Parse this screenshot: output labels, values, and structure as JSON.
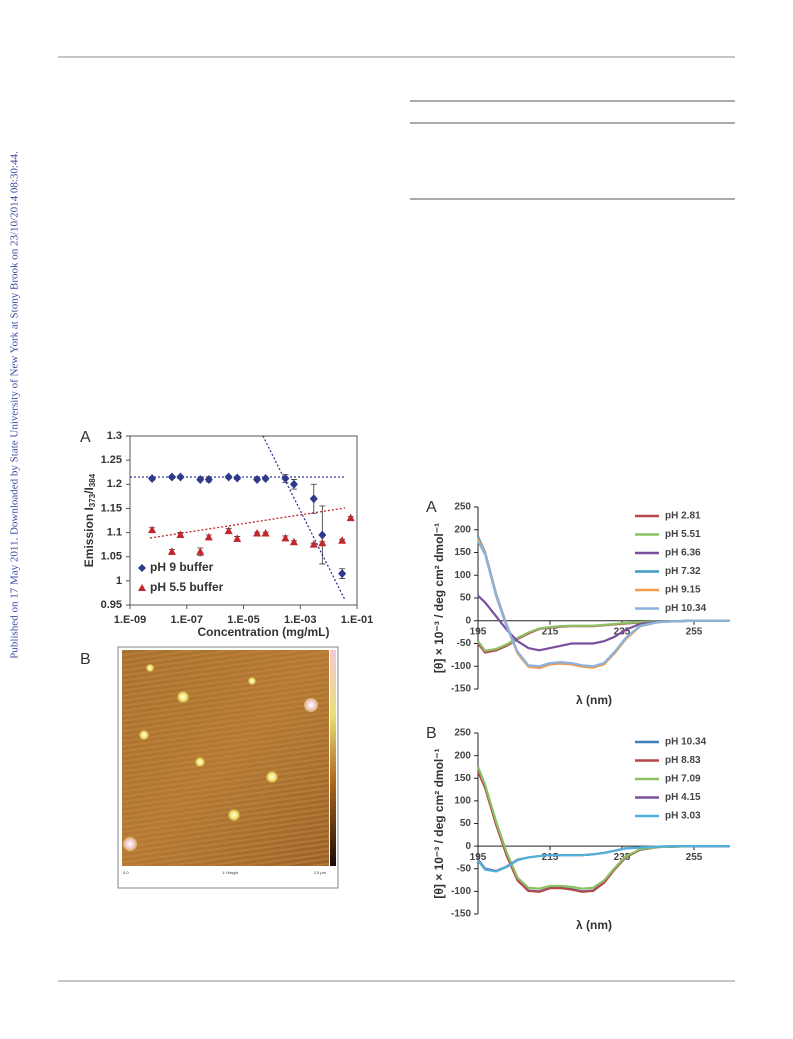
{
  "sidebar": "Published on 17 May 2011. Downloaded by State University of New York at Stony Brook on 23/10/2014 08:30:44.",
  "afm_image": {
    "panel": "B",
    "labels": [
      "0.0",
      "1: Height",
      "2.0 µm"
    ]
  },
  "chart_data": [
    {
      "type": "scatter",
      "panel": "A",
      "xlabel": "Concentration (mg/mL)",
      "ylabel": [
        "Emission I",
        "373",
        "/I",
        "384"
      ],
      "xlog": true,
      "xlim": [
        1e-09,
        0.1
      ],
      "xticks": [
        {
          "value": 1e-09,
          "label": "1.E-09"
        },
        {
          "value": 1e-07,
          "label": "1.E-07"
        },
        {
          "value": 1e-05,
          "label": "1.E-05"
        },
        {
          "value": 0.001,
          "label": "1.E-03"
        },
        {
          "value": 0.1,
          "label": "1.E-01"
        }
      ],
      "ylim": [
        0.95,
        1.3
      ],
      "yticks": [
        0.95,
        1,
        1.05,
        1.1,
        1.15,
        1.2,
        1.25,
        1.3
      ],
      "legend": "bottom-left",
      "series": [
        {
          "name": "pH 9 buffer",
          "color": "#2f3a8f",
          "marker": "diamond",
          "x": [
            6e-09,
            3e-08,
            6e-08,
            3e-07,
            6e-07,
            3e-06,
            6e-06,
            3e-05,
            6e-05,
            0.0003,
            0.0006,
            0.003,
            0.006,
            0.03
          ],
          "values": [
            1.212,
            1.215,
            1.215,
            1.21,
            1.21,
            1.215,
            1.213,
            1.21,
            1.212,
            1.212,
            1.2,
            1.17,
            1.095,
            1.015
          ],
          "errors": [
            0.003,
            0.003,
            0.003,
            0.003,
            0.005,
            0.003,
            0.003,
            0.003,
            0.003,
            0.008,
            0.01,
            0.03,
            0.06,
            0.01
          ]
        },
        {
          "name": "pH 5.5 buffer",
          "color": "#c0282d",
          "marker": "triangle",
          "x": [
            6e-09,
            3e-08,
            6e-08,
            3e-07,
            6e-07,
            3e-06,
            6e-06,
            3e-05,
            6e-05,
            0.0003,
            0.0006,
            0.003,
            0.006,
            0.03,
            0.06
          ],
          "values": [
            1.105,
            1.06,
            1.095,
            1.06,
            1.09,
            1.103,
            1.087,
            1.098,
            1.098,
            1.088,
            1.08,
            1.075,
            1.078,
            1.083,
            1.13
          ],
          "errors": [
            0.005,
            0.005,
            0.005,
            0.008,
            0.005,
            0.005,
            0.005,
            0.003,
            0.003,
            0.005,
            0.003,
            0.003,
            0.003,
            0.003,
            0.003
          ]
        }
      ]
    },
    {
      "type": "line",
      "panel": "A",
      "xlabel": "λ (nm)",
      "ylabel": "[θ] × 10⁻³ / deg cm² dmol⁻¹",
      "xlim": [
        195,
        265
      ],
      "xticks": [
        195,
        215,
        235,
        255
      ],
      "ylim": [
        -150,
        250
      ],
      "yticks": [
        -150,
        -100,
        -50,
        0,
        50,
        100,
        150,
        200,
        250
      ],
      "legend": "top-right",
      "x": [
        195,
        197,
        200,
        203,
        206,
        209,
        212,
        215,
        218,
        221,
        224,
        227,
        230,
        233,
        236,
        240,
        245,
        250,
        255,
        260,
        265
      ],
      "series": [
        {
          "name": "pH 2.81",
          "color": "#b5464a",
          "values": [
            -50,
            -70,
            -65,
            -55,
            -40,
            -28,
            -18,
            -15,
            -13,
            -12,
            -12,
            -12,
            -10,
            -8,
            -6,
            -4,
            -2,
            -1,
            0,
            0,
            0
          ]
        },
        {
          "name": "pH 5.51",
          "color": "#8cc063",
          "values": [
            -45,
            -66,
            -62,
            -52,
            -38,
            -26,
            -17,
            -14,
            -12,
            -11,
            -11,
            -11,
            -9,
            -7,
            -5,
            -3,
            -2,
            -1,
            0,
            0,
            0
          ]
        },
        {
          "name": "pH 6.36",
          "color": "#7a4fa0",
          "values": [
            55,
            40,
            10,
            -20,
            -45,
            -60,
            -65,
            -60,
            -55,
            -50,
            -50,
            -50,
            -45,
            -35,
            -20,
            -7,
            -2,
            -1,
            0,
            0,
            0
          ]
        },
        {
          "name": "pH 7.32",
          "color": "#3d9bc5",
          "values": [
            185,
            150,
            60,
            -10,
            -70,
            -100,
            -103,
            -95,
            -93,
            -95,
            -100,
            -102,
            -95,
            -70,
            -40,
            -12,
            -3,
            -1,
            0,
            0,
            0
          ]
        },
        {
          "name": "pH 9.15",
          "color": "#f39a4b",
          "values": [
            180,
            148,
            58,
            -12,
            -72,
            -101,
            -104,
            -96,
            -94,
            -96,
            -101,
            -103,
            -96,
            -71,
            -41,
            -12,
            -3,
            -1,
            0,
            0,
            0
          ]
        },
        {
          "name": "pH 10.34",
          "color": "#8ab4df",
          "values": [
            175,
            145,
            55,
            -14,
            -68,
            -98,
            -100,
            -93,
            -91,
            -93,
            -98,
            -100,
            -93,
            -68,
            -38,
            -11,
            -3,
            -1,
            0,
            0,
            0
          ]
        }
      ]
    },
    {
      "type": "line",
      "panel": "B",
      "xlabel": "λ (nm)",
      "ylabel": "[θ] × 10⁻³ / deg cm² dmol⁻¹",
      "xlim": [
        195,
        265
      ],
      "xticks": [
        195,
        215,
        235,
        255
      ],
      "ylim": [
        -150,
        250
      ],
      "yticks": [
        -150,
        -100,
        -50,
        0,
        50,
        100,
        150,
        200,
        250
      ],
      "legend": "top-right",
      "x": [
        195,
        197,
        200,
        203,
        206,
        209,
        212,
        215,
        218,
        221,
        224,
        227,
        230,
        233,
        236,
        240,
        245,
        250,
        255,
        260,
        265
      ],
      "series": [
        {
          "name": "pH 10.34",
          "color": "#3f7fbf",
          "values": [
            170,
            130,
            50,
            -20,
            -75,
            -98,
            -100,
            -92,
            -92,
            -95,
            -100,
            -98,
            -80,
            -50,
            -25,
            -8,
            -2,
            -1,
            0,
            0,
            0
          ]
        },
        {
          "name": "pH 8.83",
          "color": "#b5464a",
          "values": [
            165,
            128,
            48,
            -22,
            -76,
            -99,
            -101,
            -93,
            -93,
            -96,
            -101,
            -99,
            -81,
            -51,
            -25,
            -8,
            -2,
            -1,
            0,
            0,
            0
          ]
        },
        {
          "name": "pH 7.09",
          "color": "#8cc063",
          "values": [
            175,
            135,
            55,
            -15,
            -70,
            -92,
            -94,
            -88,
            -88,
            -90,
            -94,
            -92,
            -76,
            -48,
            -23,
            -7,
            -2,
            -1,
            0,
            0,
            0
          ]
        },
        {
          "name": "pH 4.15",
          "color": "#7a4fa0",
          "values": [
            -30,
            -50,
            -55,
            -45,
            -30,
            -25,
            -22,
            -20,
            -20,
            -20,
            -20,
            -18,
            -15,
            -10,
            -5,
            -3,
            -1,
            0,
            0,
            0,
            0
          ]
        },
        {
          "name": "pH 3.03",
          "color": "#4fb3d9",
          "values": [
            -32,
            -52,
            -56,
            -46,
            -31,
            -25,
            -22,
            -20,
            -20,
            -20,
            -20,
            -18,
            -15,
            -10,
            -5,
            -3,
            -1,
            0,
            0,
            0,
            0
          ]
        }
      ]
    }
  ]
}
